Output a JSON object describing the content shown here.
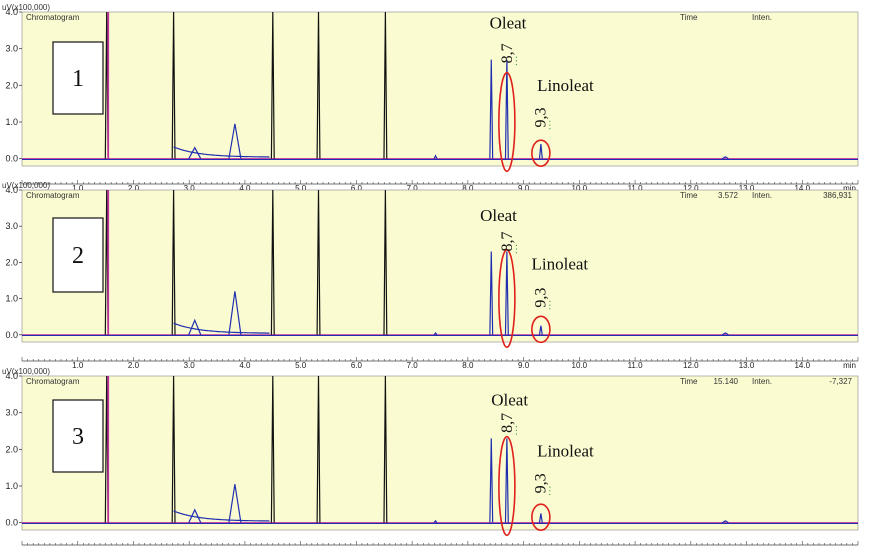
{
  "colors": {
    "plot_background": "#fbfbd2",
    "trace_blue": "#1f2fb0",
    "trace_magenta": "#c0309a",
    "peak_dark": "#111111",
    "highlight_ellipse": "#e0201a",
    "retention_dot": "#2f9a2f"
  },
  "panel_header": {
    "y_unit": "uV(x100,000)",
    "chart_title": "Chromatogram",
    "time_label": "Time",
    "inten_label": "Inten.",
    "x_unit": "min"
  },
  "chart_data": [
    {
      "type": "line",
      "panel_number": "1",
      "x_ticks": [
        "1.0",
        "2.0",
        "3.0",
        "4.0",
        "5.0",
        "6.0",
        "7.0",
        "8.0",
        "9.0",
        "10.0",
        "11.0",
        "12.0",
        "13.0",
        "14.0"
      ],
      "y_ticks": [
        "4.0",
        "3.0",
        "2.0",
        "1.0",
        "0.0"
      ],
      "xlim": [
        0.0,
        15.0
      ],
      "ylim": [
        -0.2,
        4.0
      ],
      "readout": {
        "time": "",
        "inten": ""
      },
      "peaks": [
        {
          "x": 1.52,
          "y": 4.0
        },
        {
          "x": 2.72,
          "y": 4.0
        },
        {
          "x": 3.1,
          "y": 0.3
        },
        {
          "x": 3.82,
          "y": 0.95
        },
        {
          "x": 4.5,
          "y": 4.0
        },
        {
          "x": 5.32,
          "y": 4.0
        },
        {
          "x": 6.52,
          "y": 4.0
        },
        {
          "x": 7.42,
          "y": 0.08
        },
        {
          "x": 8.42,
          "y": 2.7
        },
        {
          "x": 8.7,
          "y": 2.7
        },
        {
          "x": 9.31,
          "y": 0.4
        },
        {
          "x": 12.62,
          "y": 0.05
        }
      ],
      "annotations": [
        {
          "text": "Oleat",
          "x": 8.72,
          "y": 3.55
        },
        {
          "text": "Linoleat",
          "x": 9.75,
          "y": 1.85
        }
      ],
      "retention_labels": [
        {
          "text": "8,7",
          "x": 8.72,
          "y": 2.6
        },
        {
          "text": "9,3",
          "x": 9.32,
          "y": 0.85
        }
      ]
    },
    {
      "type": "line",
      "panel_number": "2",
      "x_ticks": [
        "1.0",
        "2.0",
        "3.0",
        "4.0",
        "5.0",
        "6.0",
        "7.0",
        "8.0",
        "9.0",
        "10.0",
        "11.0",
        "12.0",
        "13.0",
        "14.0"
      ],
      "y_ticks": [
        "4.0",
        "3.0",
        "2.0",
        "1.0",
        "0.0"
      ],
      "xlim": [
        0.0,
        15.0
      ],
      "ylim": [
        -0.2,
        4.0
      ],
      "readout": {
        "time": "3.572",
        "inten": "386,931"
      },
      "peaks": [
        {
          "x": 1.52,
          "y": 4.0
        },
        {
          "x": 2.72,
          "y": 4.0
        },
        {
          "x": 3.1,
          "y": 0.4
        },
        {
          "x": 3.82,
          "y": 1.2
        },
        {
          "x": 4.5,
          "y": 4.0
        },
        {
          "x": 5.32,
          "y": 4.0
        },
        {
          "x": 6.52,
          "y": 4.0
        },
        {
          "x": 7.42,
          "y": 0.05
        },
        {
          "x": 8.42,
          "y": 2.3
        },
        {
          "x": 8.7,
          "y": 2.3
        },
        {
          "x": 9.31,
          "y": 0.25
        },
        {
          "x": 12.62,
          "y": 0.05
        }
      ],
      "annotations": [
        {
          "text": "Oleat",
          "x": 8.55,
          "y": 3.15
        },
        {
          "text": "Linoleat",
          "x": 9.65,
          "y": 1.8
        }
      ],
      "retention_labels": [
        {
          "text": "8,7",
          "x": 8.72,
          "y": 2.3
        },
        {
          "text": "9,3",
          "x": 9.32,
          "y": 0.75
        }
      ]
    },
    {
      "type": "line",
      "panel_number": "3",
      "x_ticks": [
        "1.0",
        "2.0",
        "3.0",
        "4.0",
        "5.0",
        "6.0",
        "7.0",
        "8.0",
        "9.0",
        "10.0",
        "11.0",
        "12.0",
        "13.0",
        "14.0"
      ],
      "y_ticks": [
        "4.0",
        "3.0",
        "2.0",
        "1.0",
        "0.0"
      ],
      "xlim": [
        0.0,
        15.0
      ],
      "ylim": [
        -0.2,
        4.0
      ],
      "readout": {
        "time": "15.140",
        "inten": "-7,327"
      },
      "peaks": [
        {
          "x": 1.52,
          "y": 4.0
        },
        {
          "x": 2.72,
          "y": 4.0
        },
        {
          "x": 3.1,
          "y": 0.35
        },
        {
          "x": 3.82,
          "y": 1.05
        },
        {
          "x": 4.5,
          "y": 4.0
        },
        {
          "x": 5.32,
          "y": 4.0
        },
        {
          "x": 6.52,
          "y": 4.0
        },
        {
          "x": 7.42,
          "y": 0.05
        },
        {
          "x": 8.42,
          "y": 2.3
        },
        {
          "x": 8.7,
          "y": 2.3
        },
        {
          "x": 9.31,
          "y": 0.25
        },
        {
          "x": 12.62,
          "y": 0.05
        }
      ],
      "annotations": [
        {
          "text": "Oleat",
          "x": 8.75,
          "y": 3.2
        },
        {
          "text": "Linoleat",
          "x": 9.75,
          "y": 1.8
        }
      ],
      "retention_labels": [
        {
          "text": "8,7",
          "x": 8.72,
          "y": 2.45
        },
        {
          "text": "9,3",
          "x": 9.32,
          "y": 0.8
        }
      ]
    }
  ]
}
